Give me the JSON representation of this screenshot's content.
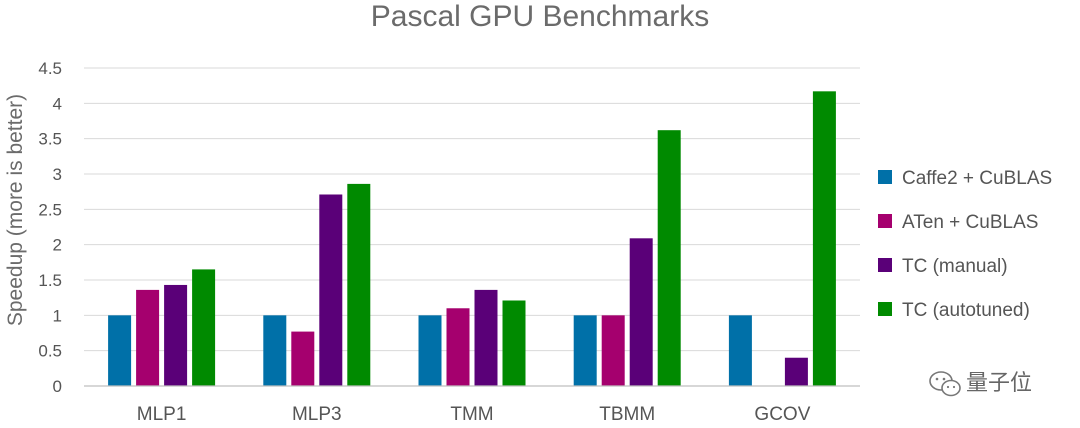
{
  "chart_data": {
    "type": "bar",
    "title": "Pascal GPU Benchmarks",
    "xlabel": "",
    "ylabel": "Speedup (more is better)",
    "ylim": [
      0,
      4.5
    ],
    "yticks": [
      "0",
      "0.5",
      "1",
      "1.5",
      "2",
      "2.5",
      "3",
      "3.5",
      "4",
      "4.5"
    ],
    "grid": true,
    "legend_position": "right",
    "categories": [
      "MLP1",
      "MLP3",
      "TMM",
      "TBMM",
      "GCOV"
    ],
    "series": [
      {
        "name": "Caffe2 + CuBLAS",
        "color": "#0070a8",
        "values": [
          1.0,
          1.0,
          1.0,
          1.0,
          1.0
        ]
      },
      {
        "name": "ATen + CuBLAS",
        "color": "#a5006e",
        "values": [
          1.36,
          0.77,
          1.1,
          1.0,
          0
        ]
      },
      {
        "name": "TC (manual)",
        "color": "#5a0078",
        "values": [
          1.43,
          2.71,
          1.36,
          2.09,
          0.4
        ]
      },
      {
        "name": "TC (autotuned)",
        "color": "#008a00",
        "values": [
          1.65,
          2.86,
          1.21,
          3.62,
          4.17
        ]
      }
    ]
  },
  "watermark": {
    "text": "量子位",
    "icon": "wechat-icon"
  }
}
